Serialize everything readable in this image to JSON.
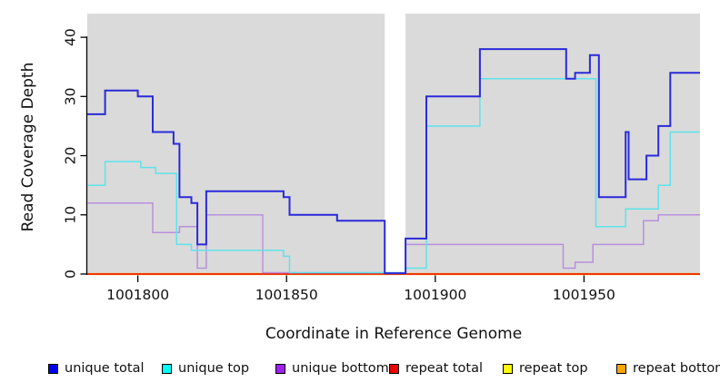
{
  "chart_data": {
    "type": "line",
    "subtype": "step-coverage",
    "title": "",
    "xlabel": "Coordinate in Reference Genome",
    "ylabel": "Read Coverage Depth",
    "xlim": [
      1001783,
      1001989
    ],
    "ylim": [
      0,
      44
    ],
    "xticks": [
      "1001800",
      "1001850",
      "1001900",
      "1001950"
    ],
    "xtick_values": [
      1001800,
      1001850,
      1001900,
      1001950
    ],
    "yticks": [
      "0",
      "10",
      "20",
      "30",
      "40"
    ],
    "ytick_values": [
      0,
      10,
      20,
      30,
      40
    ],
    "grid": "off",
    "legend_position": "bottom",
    "plot_background": "#DADADA",
    "page_background": "#FFFFFF",
    "missing_data_gap": {
      "from": 1001883,
      "to": 1001890
    },
    "series": [
      {
        "name": "unique total",
        "color": "#2A2AD9",
        "legend_color": "#0000EE",
        "steps": [
          [
            1001783,
            27
          ],
          [
            1001789,
            31
          ],
          [
            1001800,
            30
          ],
          [
            1001805,
            24
          ],
          [
            1001812,
            22
          ],
          [
            1001814,
            13
          ],
          [
            1001818,
            12
          ],
          [
            1001820,
            5
          ],
          [
            1001823,
            14
          ],
          [
            1001849,
            13
          ],
          [
            1001851,
            10
          ],
          [
            1001867,
            9
          ],
          [
            1001883,
            0
          ],
          [
            1001890,
            6
          ],
          [
            1001897,
            30
          ],
          [
            1001915,
            38
          ],
          [
            1001944,
            33
          ],
          [
            1001947,
            34
          ],
          [
            1001952,
            37
          ],
          [
            1001955,
            13
          ],
          [
            1001964,
            24
          ],
          [
            1001965,
            16
          ],
          [
            1001971,
            20
          ],
          [
            1001975,
            25
          ],
          [
            1001979,
            34
          ],
          [
            1001989,
            34
          ]
        ]
      },
      {
        "name": "unique top",
        "color": "#5FE2EC",
        "legend_color": "#00FFFF",
        "steps": [
          [
            1001783,
            15
          ],
          [
            1001789,
            19
          ],
          [
            1001801,
            18
          ],
          [
            1001806,
            17
          ],
          [
            1001813,
            5
          ],
          [
            1001818,
            4
          ],
          [
            1001849,
            3
          ],
          [
            1001851,
            0
          ],
          [
            1001890,
            1
          ],
          [
            1001897,
            25
          ],
          [
            1001915,
            33
          ],
          [
            1001954,
            8
          ],
          [
            1001964,
            11
          ],
          [
            1001975,
            15
          ],
          [
            1001979,
            24
          ],
          [
            1001989,
            24
          ]
        ]
      },
      {
        "name": "unique bottom",
        "color": "#B98FDC",
        "legend_color": "#A020F0",
        "steps": [
          [
            1001783,
            12
          ],
          [
            1001805,
            7
          ],
          [
            1001814,
            8
          ],
          [
            1001820,
            1
          ],
          [
            1001823,
            10
          ],
          [
            1001842,
            0
          ],
          [
            1001890,
            5
          ],
          [
            1001943,
            1
          ],
          [
            1001947,
            2
          ],
          [
            1001953,
            5
          ],
          [
            1001970,
            9
          ],
          [
            1001975,
            10
          ],
          [
            1001989,
            10
          ]
        ]
      },
      {
        "name": "repeat total",
        "color": "#EE0000",
        "legend_color": "#EE0000",
        "steps": [
          [
            1001783,
            0
          ],
          [
            1001989,
            0
          ]
        ]
      },
      {
        "name": "repeat top",
        "color": "#FFFF00",
        "legend_color": "#FFFF00",
        "steps": [
          [
            1001783,
            0
          ],
          [
            1001989,
            0
          ]
        ]
      },
      {
        "name": "repeat bottom",
        "color": "#FFA500",
        "legend_color": "#FFA500",
        "steps": [
          [
            1001783,
            0
          ],
          [
            1001989,
            0
          ]
        ]
      }
    ]
  }
}
